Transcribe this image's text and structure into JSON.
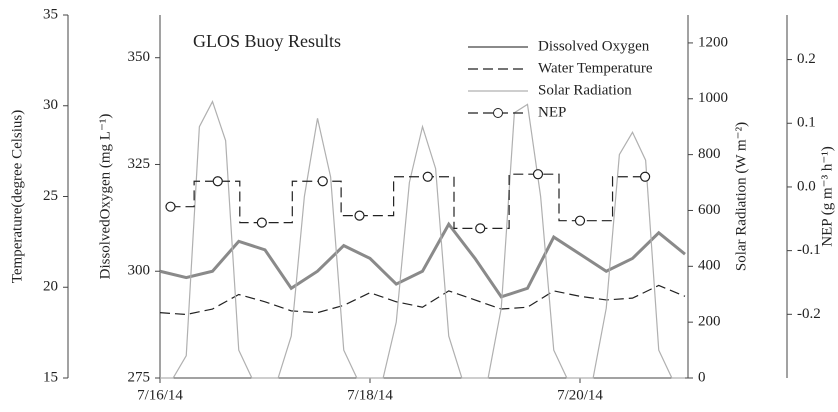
{
  "chart_data": {
    "type": "line",
    "title": "GLOS Buoy Results",
    "xlim": [
      0,
      5
    ],
    "xticks": [
      {
        "value": 0,
        "label": "7/16/14"
      },
      {
        "value": 2,
        "label": "7/18/14"
      },
      {
        "value": 4,
        "label": "7/20/14"
      }
    ],
    "ylim": [
      275,
      360
    ],
    "yticks": [
      275,
      300,
      325,
      350
    ],
    "ylabel": "DissolvedOxygen (mg L⁻¹)",
    "y2lim": [
      0,
      1300
    ],
    "y2ticks": [
      0,
      200,
      400,
      600,
      800,
      1000,
      1200
    ],
    "y2label": "Solar Radiation (W m⁻²)",
    "y3lim": [
      15,
      35
    ],
    "y3ticks": [
      15,
      20,
      25,
      30,
      35
    ],
    "y3label": "Temperature(degree Celsius)",
    "y4lim": [
      -0.3,
      0.27
    ],
    "y4ticks": [
      -0.2,
      -0.1,
      {
        "value": 0,
        "label": "0.0"
      },
      0.1,
      0.2
    ],
    "y4label": "NEP (g m⁻³ h⁻¹)",
    "series": [
      {
        "name": "Dissolved Oxygen",
        "color": "#8a8a8a",
        "axis": "y",
        "width": 3,
        "x": [
          0,
          0.25,
          0.5,
          0.75,
          1,
          1.25,
          1.5,
          1.75,
          2,
          2.25,
          2.5,
          2.75,
          3,
          3.25,
          3.5,
          3.75,
          4,
          4.25,
          4.5,
          4.75,
          5
        ],
        "values": [
          300,
          298.5,
          300,
          307,
          305,
          296,
          300,
          306,
          303,
          297,
          300,
          311,
          303,
          294,
          296,
          308,
          304,
          300,
          303,
          309,
          304
        ]
      },
      {
        "name": "Water Temperature",
        "color": "#222222",
        "axis": "y3",
        "width": 1.2,
        "dash": true,
        "x": [
          0,
          0.25,
          0.5,
          0.75,
          1,
          1.25,
          1.5,
          1.75,
          2,
          2.25,
          2.5,
          2.75,
          3,
          3.25,
          3.5,
          3.75,
          4,
          4.25,
          4.5,
          4.75,
          5
        ],
        "values": [
          18.6,
          18.5,
          18.8,
          19.6,
          19.2,
          18.7,
          18.6,
          19.0,
          19.7,
          19.2,
          18.9,
          19.8,
          19.3,
          18.8,
          18.9,
          19.8,
          19.5,
          19.3,
          19.4,
          20.1,
          19.5
        ]
      },
      {
        "name": "Solar Radiation",
        "color": "#b0b0b0",
        "axis": "y2",
        "width": 1.2,
        "x": [
          0,
          0.125,
          0.25,
          0.375,
          0.5,
          0.625,
          0.75,
          0.875,
          1,
          1.125,
          1.25,
          1.375,
          1.5,
          1.625,
          1.75,
          1.875,
          2,
          2.125,
          2.25,
          2.375,
          2.5,
          2.625,
          2.75,
          2.875,
          3,
          3.125,
          3.25,
          3.375,
          3.5,
          3.625,
          3.75,
          3.875,
          4,
          4.125,
          4.25,
          4.375,
          4.5,
          4.625,
          4.75,
          4.875,
          5
        ],
        "values": [
          0,
          0,
          80,
          900,
          990,
          850,
          100,
          0,
          0,
          0,
          150,
          650,
          930,
          720,
          100,
          0,
          0,
          0,
          200,
          700,
          900,
          750,
          150,
          0,
          0,
          0,
          250,
          950,
          980,
          650,
          100,
          0,
          0,
          0,
          250,
          800,
          880,
          780,
          100,
          0,
          0
        ]
      },
      {
        "name": "NEP",
        "color": "#222222",
        "axis": "y4",
        "width": 1.2,
        "dash": true,
        "marker": "circle",
        "step": true,
        "x": [
          0.1,
          0.55,
          0.97,
          1.55,
          1.9,
          2.55,
          3.05,
          3.6,
          4.0,
          4.62
        ],
        "values": [
          -0.031,
          0.009,
          -0.056,
          0.009,
          -0.045,
          0.016,
          -0.065,
          0.02,
          -0.053,
          0.016
        ]
      }
    ]
  }
}
